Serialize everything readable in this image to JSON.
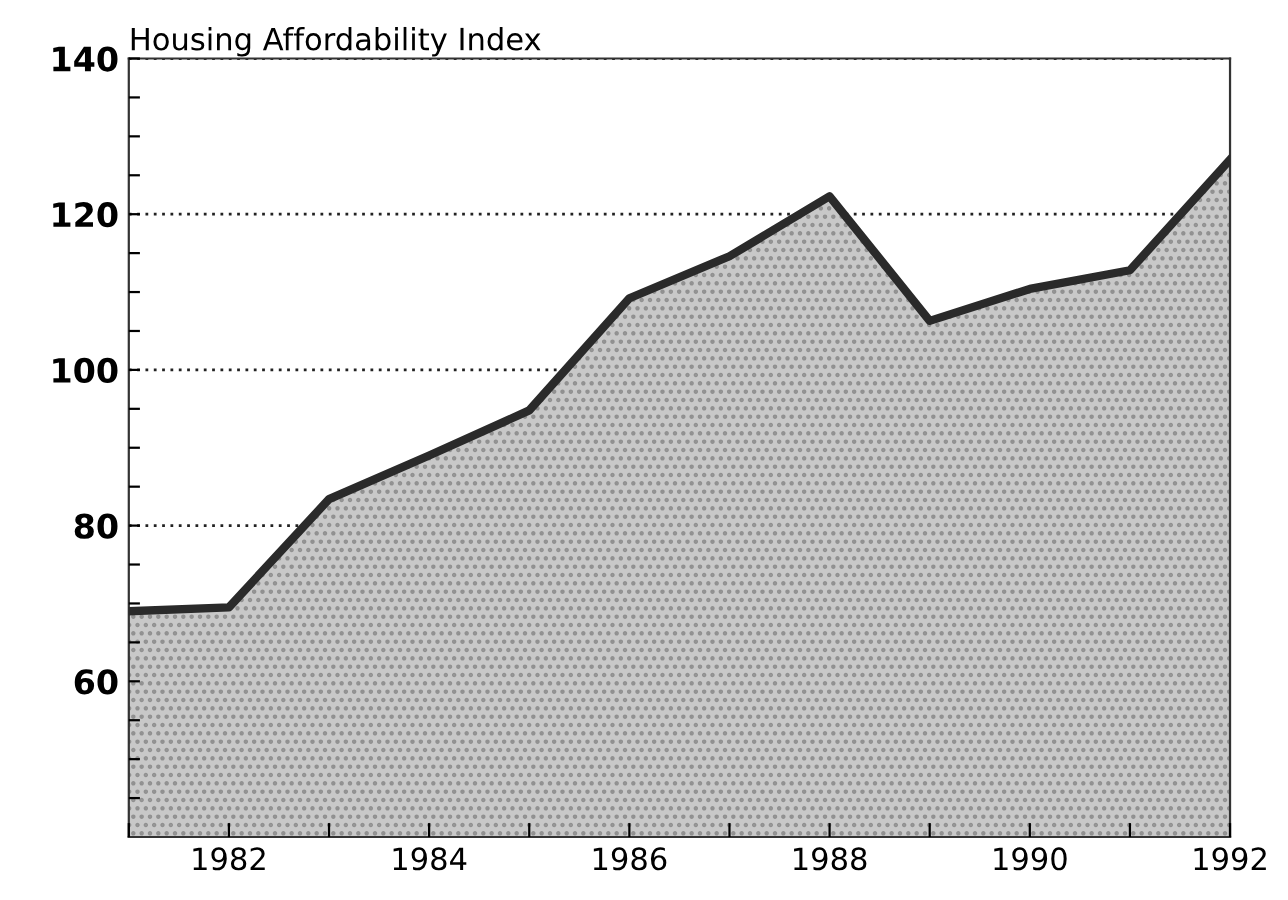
{
  "chart_data": {
    "type": "area",
    "title": "Housing Affordability Index",
    "x": [
      1981,
      1982,
      1983,
      1984,
      1985,
      1986,
      1987,
      1988,
      1989,
      1990,
      1991,
      1992
    ],
    "series": [
      {
        "color": "#c8c8c8",
        "values": [
          69,
          69.5,
          83.4,
          89,
          94.8,
          109.2,
          114.6,
          122.3,
          106.3,
          110.4,
          112.8,
          127
        ]
      }
    ],
    "xlim": [
      1981,
      1992
    ],
    "xticks": [
      {
        "value": 1981,
        "label": null
      },
      1982,
      {
        "value": 1983,
        "label": null
      },
      1984,
      {
        "value": 1985,
        "label": null
      },
      1986,
      {
        "value": 1987,
        "label": null
      },
      1988,
      {
        "value": 1989,
        "label": null
      },
      1990,
      {
        "value": 1991,
        "label": null
      },
      1992
    ],
    "ylim": [
      40,
      140
    ],
    "yticks": [
      {
        "value": 45,
        "label": null
      },
      {
        "value": 50,
        "label": null
      },
      {
        "value": 55,
        "label": null
      },
      60,
      {
        "value": 65,
        "label": null
      },
      {
        "value": 70,
        "label": null
      },
      {
        "value": 75,
        "label": null
      },
      80,
      {
        "value": 85,
        "label": null
      },
      {
        "value": 90,
        "label": null
      },
      {
        "value": 95,
        "label": null
      },
      100,
      {
        "value": 105,
        "label": null
      },
      {
        "value": 110,
        "label": null
      },
      {
        "value": 115,
        "label": null
      },
      120,
      {
        "value": 125,
        "label": null
      },
      {
        "value": 130,
        "label": null
      },
      {
        "value": 135,
        "label": null
      },
      140
    ],
    "grid": "y",
    "line_style": "solid"
  }
}
